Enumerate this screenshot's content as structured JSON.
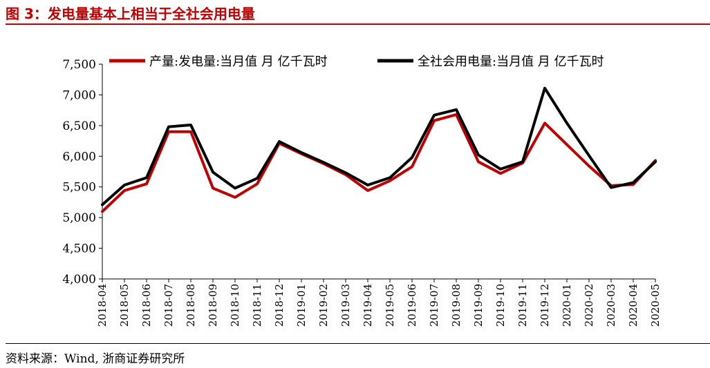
{
  "figure": {
    "title": "图 3：发电量基本上相当于全社会用电量",
    "source": "资料来源：Wind, 浙商证券研究所"
  },
  "chart_data": {
    "type": "line",
    "title": "",
    "xlabel": "",
    "ylabel": "",
    "ylim": [
      4000,
      7500
    ],
    "yticks": [
      4000,
      4500,
      5000,
      5500,
      6000,
      6500,
      7000,
      7500
    ],
    "ytick_labels": [
      "4,000",
      "4,500",
      "5,000",
      "5,500",
      "6,000",
      "6,500",
      "7,000",
      "7,500"
    ],
    "grid": false,
    "legend_position": "top",
    "categories": [
      "2018-04",
      "2018-05",
      "2018-06",
      "2018-07",
      "2018-08",
      "2018-09",
      "2018-10",
      "2018-11",
      "2018-12",
      "2019-01",
      "2019-02",
      "2019-03",
      "2019-04",
      "2019-05",
      "2019-06",
      "2019-07",
      "2019-08",
      "2019-09",
      "2019-10",
      "2019-11",
      "2019-12",
      "2020-01",
      "2020-02",
      "2020-03",
      "2020-04",
      "2020-05"
    ],
    "series": [
      {
        "name": "产量:发电量:当月值 月 亿千瓦时",
        "color": "#c00000",
        "values": [
          5100,
          5440,
          5550,
          6400,
          6400,
          5480,
          5330,
          5550,
          6210,
          6040,
          5880,
          5700,
          5440,
          5600,
          5830,
          6580,
          6680,
          5910,
          5720,
          5890,
          6540,
          6190,
          5840,
          5520,
          5540,
          5930
        ]
      },
      {
        "name": "全社会用电量:当月值 月 亿千瓦时",
        "color": "#000000",
        "values": [
          5210,
          5530,
          5650,
          6480,
          6510,
          5740,
          5480,
          5640,
          6240,
          6060,
          5900,
          5730,
          5530,
          5650,
          5980,
          6670,
          6760,
          6020,
          5790,
          5910,
          7110,
          6540,
          6010,
          5490,
          5570,
          5910
        ]
      }
    ]
  }
}
